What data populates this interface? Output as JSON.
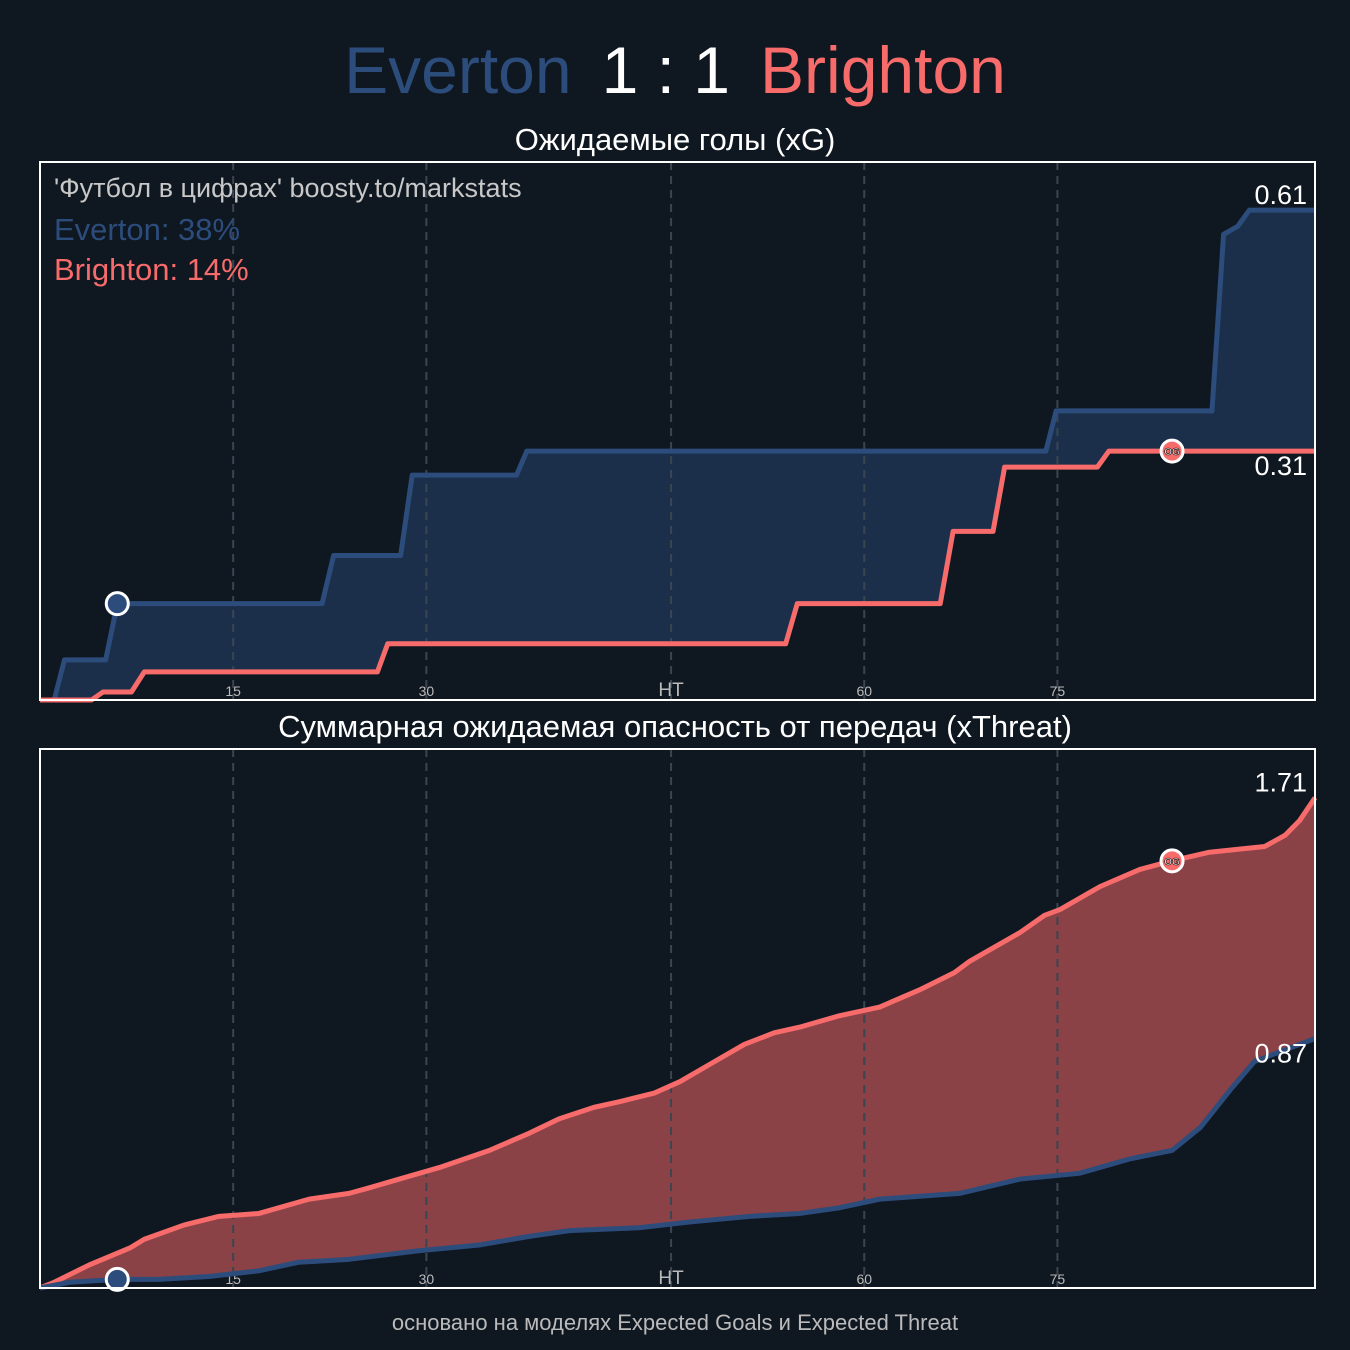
{
  "header": {
    "home": "Everton",
    "score": "1 : 1",
    "away": "Brighton"
  },
  "footer": "основано на моделях Expected Goals и Expected Threat",
  "chart_data": [
    {
      "type": "line",
      "title": "Ожидаемые голы (xG)",
      "watermark": "'Футбол в цифрах' boosty.to/markstats",
      "xlim": [
        0,
        99
      ],
      "ylim": [
        0,
        0.67
      ],
      "xticks": [
        15,
        30,
        {
          "value": 49,
          "label": "HT"
        },
        {
          "value": 64,
          "label": "60"
        },
        {
          "value": 79,
          "label": "75"
        }
      ],
      "grid": true,
      "fill": "#1c2f4a",
      "series": [
        {
          "name": "Everton: 38%",
          "color": "#2c4c7c",
          "end_label": "0.61",
          "x": [
            0,
            1.1,
            1.9,
            5.1,
            6.0,
            21.9,
            22.8,
            28.0,
            28.9,
            37.0,
            37.8,
            78.1,
            78.9,
            91.0,
            91.9,
            93.0,
            93.9,
            99
          ],
          "values": [
            0,
            0,
            0.05,
            0.05,
            0.12,
            0.12,
            0.18,
            0.18,
            0.28,
            0.28,
            0.31,
            0.31,
            0.36,
            0.36,
            0.58,
            0.59,
            0.61,
            0.61
          ],
          "markers": [
            {
              "x": 6.0
            }
          ]
        },
        {
          "name": "Brighton: 14%",
          "color": "#f76b6b",
          "end_label": "0.31",
          "x": [
            0,
            4.0,
            4.9,
            7.1,
            8.1,
            26.2,
            27.0,
            57.9,
            58.8,
            69.9,
            70.9,
            74.0,
            74.9,
            82.1,
            83.0,
            99
          ],
          "values": [
            0,
            0,
            0.01,
            0.01,
            0.035,
            0.035,
            0.07,
            0.07,
            0.12,
            0.12,
            0.21,
            0.21,
            0.29,
            0.29,
            0.31,
            0.31
          ],
          "markers": [
            {
              "x": 87.9,
              "label": "OG"
            }
          ]
        }
      ]
    },
    {
      "type": "line",
      "title": "Суммарная ожидаемая опасность от передач (xThreat)",
      "xlim": [
        0,
        99
      ],
      "ylim": [
        0,
        1.88
      ],
      "xticks": [
        15,
        30,
        {
          "value": 49,
          "label": "HT"
        },
        {
          "value": 64,
          "label": "60"
        },
        {
          "value": 79,
          "label": "75"
        }
      ],
      "grid": true,
      "fill": "#8a4247",
      "series": [
        {
          "color": "#f76b6b",
          "end_label": "1.71",
          "x": [
            0,
            1.1,
            3.8,
            7.0,
            8.1,
            11.2,
            13.9,
            17.0,
            20.9,
            24.0,
            25.6,
            27.9,
            31.0,
            34.9,
            38.0,
            40.3,
            43.0,
            45.0,
            47.7,
            49.7,
            52.0,
            54.7,
            57.0,
            59.0,
            62.1,
            65.2,
            68.3,
            71.0,
            72.2,
            76.1,
            78.0,
            79.2,
            82.3,
            85.4,
            87.9,
            90.8,
            95.1,
            96.7,
            97.8,
            99
          ],
          "values": [
            0,
            0.02,
            0.08,
            0.14,
            0.17,
            0.22,
            0.25,
            0.26,
            0.31,
            0.33,
            0.35,
            0.38,
            0.42,
            0.48,
            0.54,
            0.59,
            0.63,
            0.65,
            0.68,
            0.72,
            0.78,
            0.85,
            0.89,
            0.91,
            0.95,
            0.98,
            1.04,
            1.1,
            1.14,
            1.24,
            1.3,
            1.32,
            1.4,
            1.46,
            1.49,
            1.52,
            1.54,
            1.58,
            1.63,
            1.71
          ],
          "markers": [
            {
              "x": 87.9,
              "label": "OG"
            }
          ]
        },
        {
          "color": "#2c4c7c",
          "end_label": "0.87",
          "x": [
            0,
            2.3,
            6.0,
            9.2,
            13.1,
            17.0,
            20.1,
            24.0,
            29.4,
            34.1,
            38.0,
            41.1,
            46.5,
            50.4,
            55.1,
            59.0,
            62.1,
            65.2,
            71.4,
            76.1,
            80.7,
            84.6,
            87.9,
            90.1,
            92.4,
            94.3,
            99
          ],
          "values": [
            0,
            0.02,
            0.03,
            0.03,
            0.04,
            0.06,
            0.09,
            0.1,
            0.13,
            0.15,
            0.18,
            0.2,
            0.21,
            0.23,
            0.25,
            0.26,
            0.28,
            0.31,
            0.33,
            0.38,
            0.4,
            0.45,
            0.48,
            0.56,
            0.69,
            0.79,
            0.87
          ],
          "markers": [
            {
              "x": 6.0
            }
          ]
        }
      ]
    }
  ]
}
